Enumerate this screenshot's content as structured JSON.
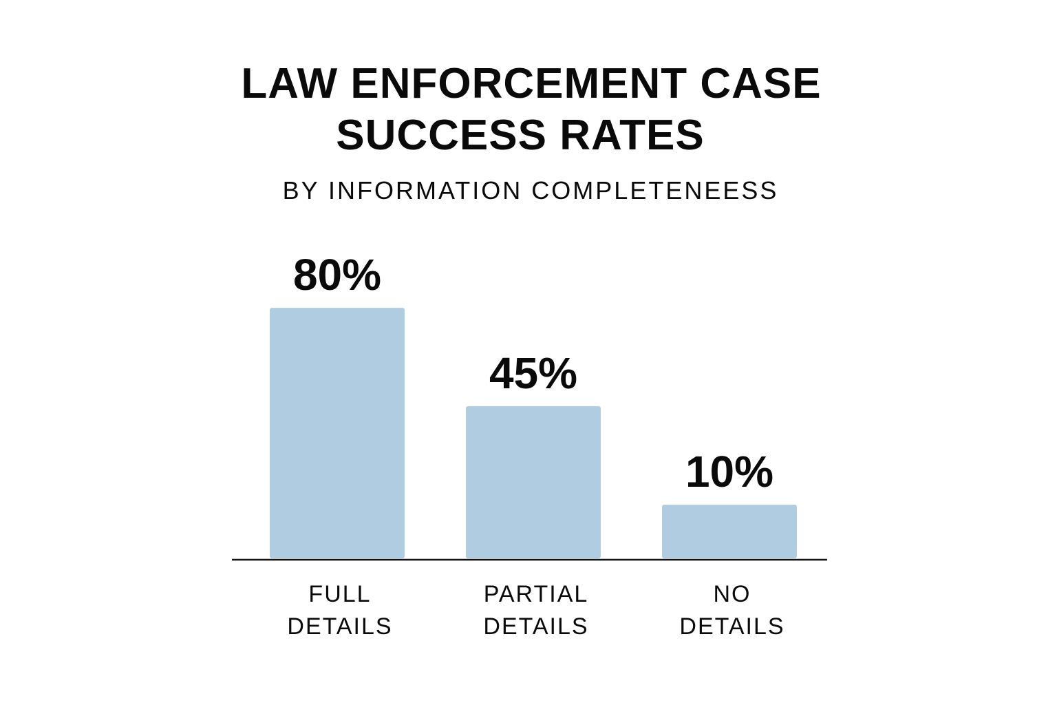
{
  "chart_data": {
    "type": "bar",
    "title": [
      "LAW ENFORCEMENT CASE",
      "SUCCESS RATES"
    ],
    "subtitle": "BY INFORMATION COMPLETENEESS",
    "categories": [
      [
        "FULL",
        "DETAILS"
      ],
      [
        "PARTIAL",
        "DETAILS"
      ],
      [
        "NO",
        "DETAILS"
      ]
    ],
    "values": [
      80,
      45,
      10
    ],
    "value_labels": [
      "80%",
      "45%",
      "10%"
    ],
    "unit": "%",
    "xlabel": "",
    "ylabel": "",
    "grid": false,
    "bar_color": "#b0cce0",
    "axis_color": "#111111"
  }
}
